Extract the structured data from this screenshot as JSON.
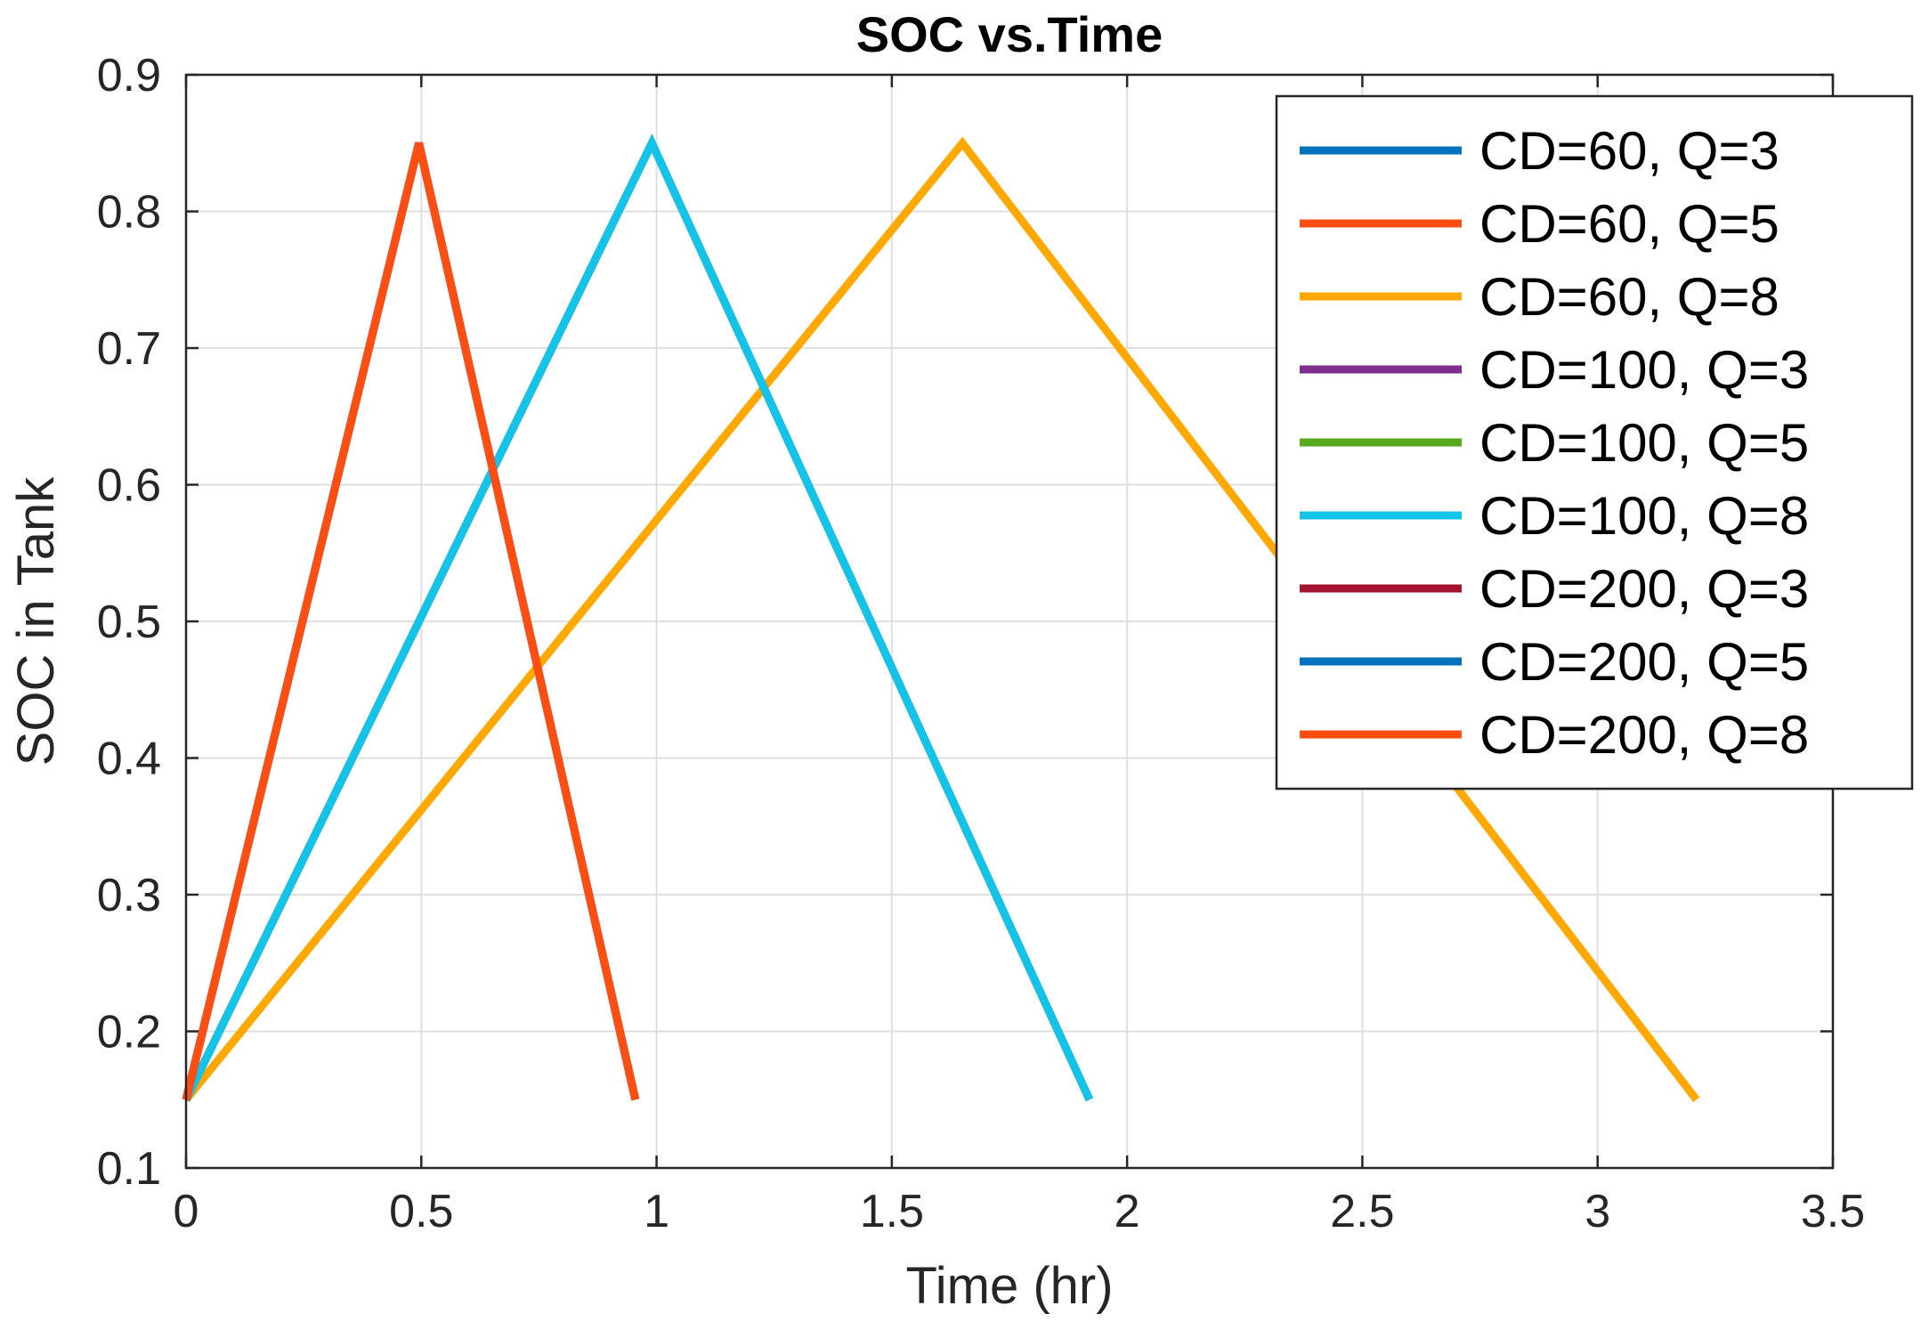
{
  "chart_data": {
    "type": "line",
    "title": "SOC vs.Time",
    "xlabel": "Time (hr)",
    "ylabel": "SOC in Tank",
    "xlim": [
      0,
      3.5
    ],
    "ylim": [
      0.1,
      0.9
    ],
    "xticks": [
      0,
      0.5,
      1,
      1.5,
      2,
      2.5,
      3,
      3.5
    ],
    "xtick_labels": [
      "0",
      "0.5",
      "1",
      "1.5",
      "2",
      "2.5",
      "3",
      "3.5"
    ],
    "yticks": [
      0.1,
      0.2,
      0.3,
      0.4,
      0.5,
      0.6,
      0.7,
      0.8,
      0.9
    ],
    "ytick_labels": [
      "0.1",
      "0.2",
      "0.3",
      "0.4",
      "0.5",
      "0.6",
      "0.7",
      "0.8",
      "0.9"
    ],
    "grid": true,
    "legend_position": "top-right",
    "series": [
      {
        "name": "CD=60, Q=3",
        "color": "#0072BD",
        "x": [
          0,
          0.495,
          0.955
        ],
        "y": [
          0.15,
          0.85,
          0.15
        ]
      },
      {
        "name": "CD=60, Q=5",
        "color": "#FF4E12",
        "x": [
          0,
          0.495,
          0.955
        ],
        "y": [
          0.15,
          0.85,
          0.15
        ]
      },
      {
        "name": "CD=60, Q=8",
        "color": "#FFA800",
        "x": [
          0,
          1.65,
          3.21
        ],
        "y": [
          0.15,
          0.85,
          0.15
        ]
      },
      {
        "name": "CD=100, Q=3",
        "color": "#7E2F8E",
        "x": [
          0,
          0.99,
          1.92
        ],
        "y": [
          0.15,
          0.85,
          0.15
        ]
      },
      {
        "name": "CD=100, Q=5",
        "color": "#58A81B",
        "x": [
          0,
          0.99,
          1.92
        ],
        "y": [
          0.15,
          0.85,
          0.15
        ]
      },
      {
        "name": "CD=100, Q=8",
        "color": "#14C3E8",
        "x": [
          0,
          0.99,
          1.92
        ],
        "y": [
          0.15,
          0.85,
          0.15
        ]
      },
      {
        "name": "CD=200, Q=3",
        "color": "#A2142F",
        "x": [
          0,
          0.495,
          0.955
        ],
        "y": [
          0.15,
          0.85,
          0.15
        ]
      },
      {
        "name": "CD=200, Q=5",
        "color": "#0072BD",
        "x": [
          0,
          0.495,
          0.955
        ],
        "y": [
          0.15,
          0.85,
          0.15
        ]
      },
      {
        "name": "CD=200, Q=8",
        "color": "#FF4E12",
        "x": [
          0,
          0.495,
          0.955
        ],
        "y": [
          0.15,
          0.85,
          0.15
        ]
      }
    ]
  }
}
